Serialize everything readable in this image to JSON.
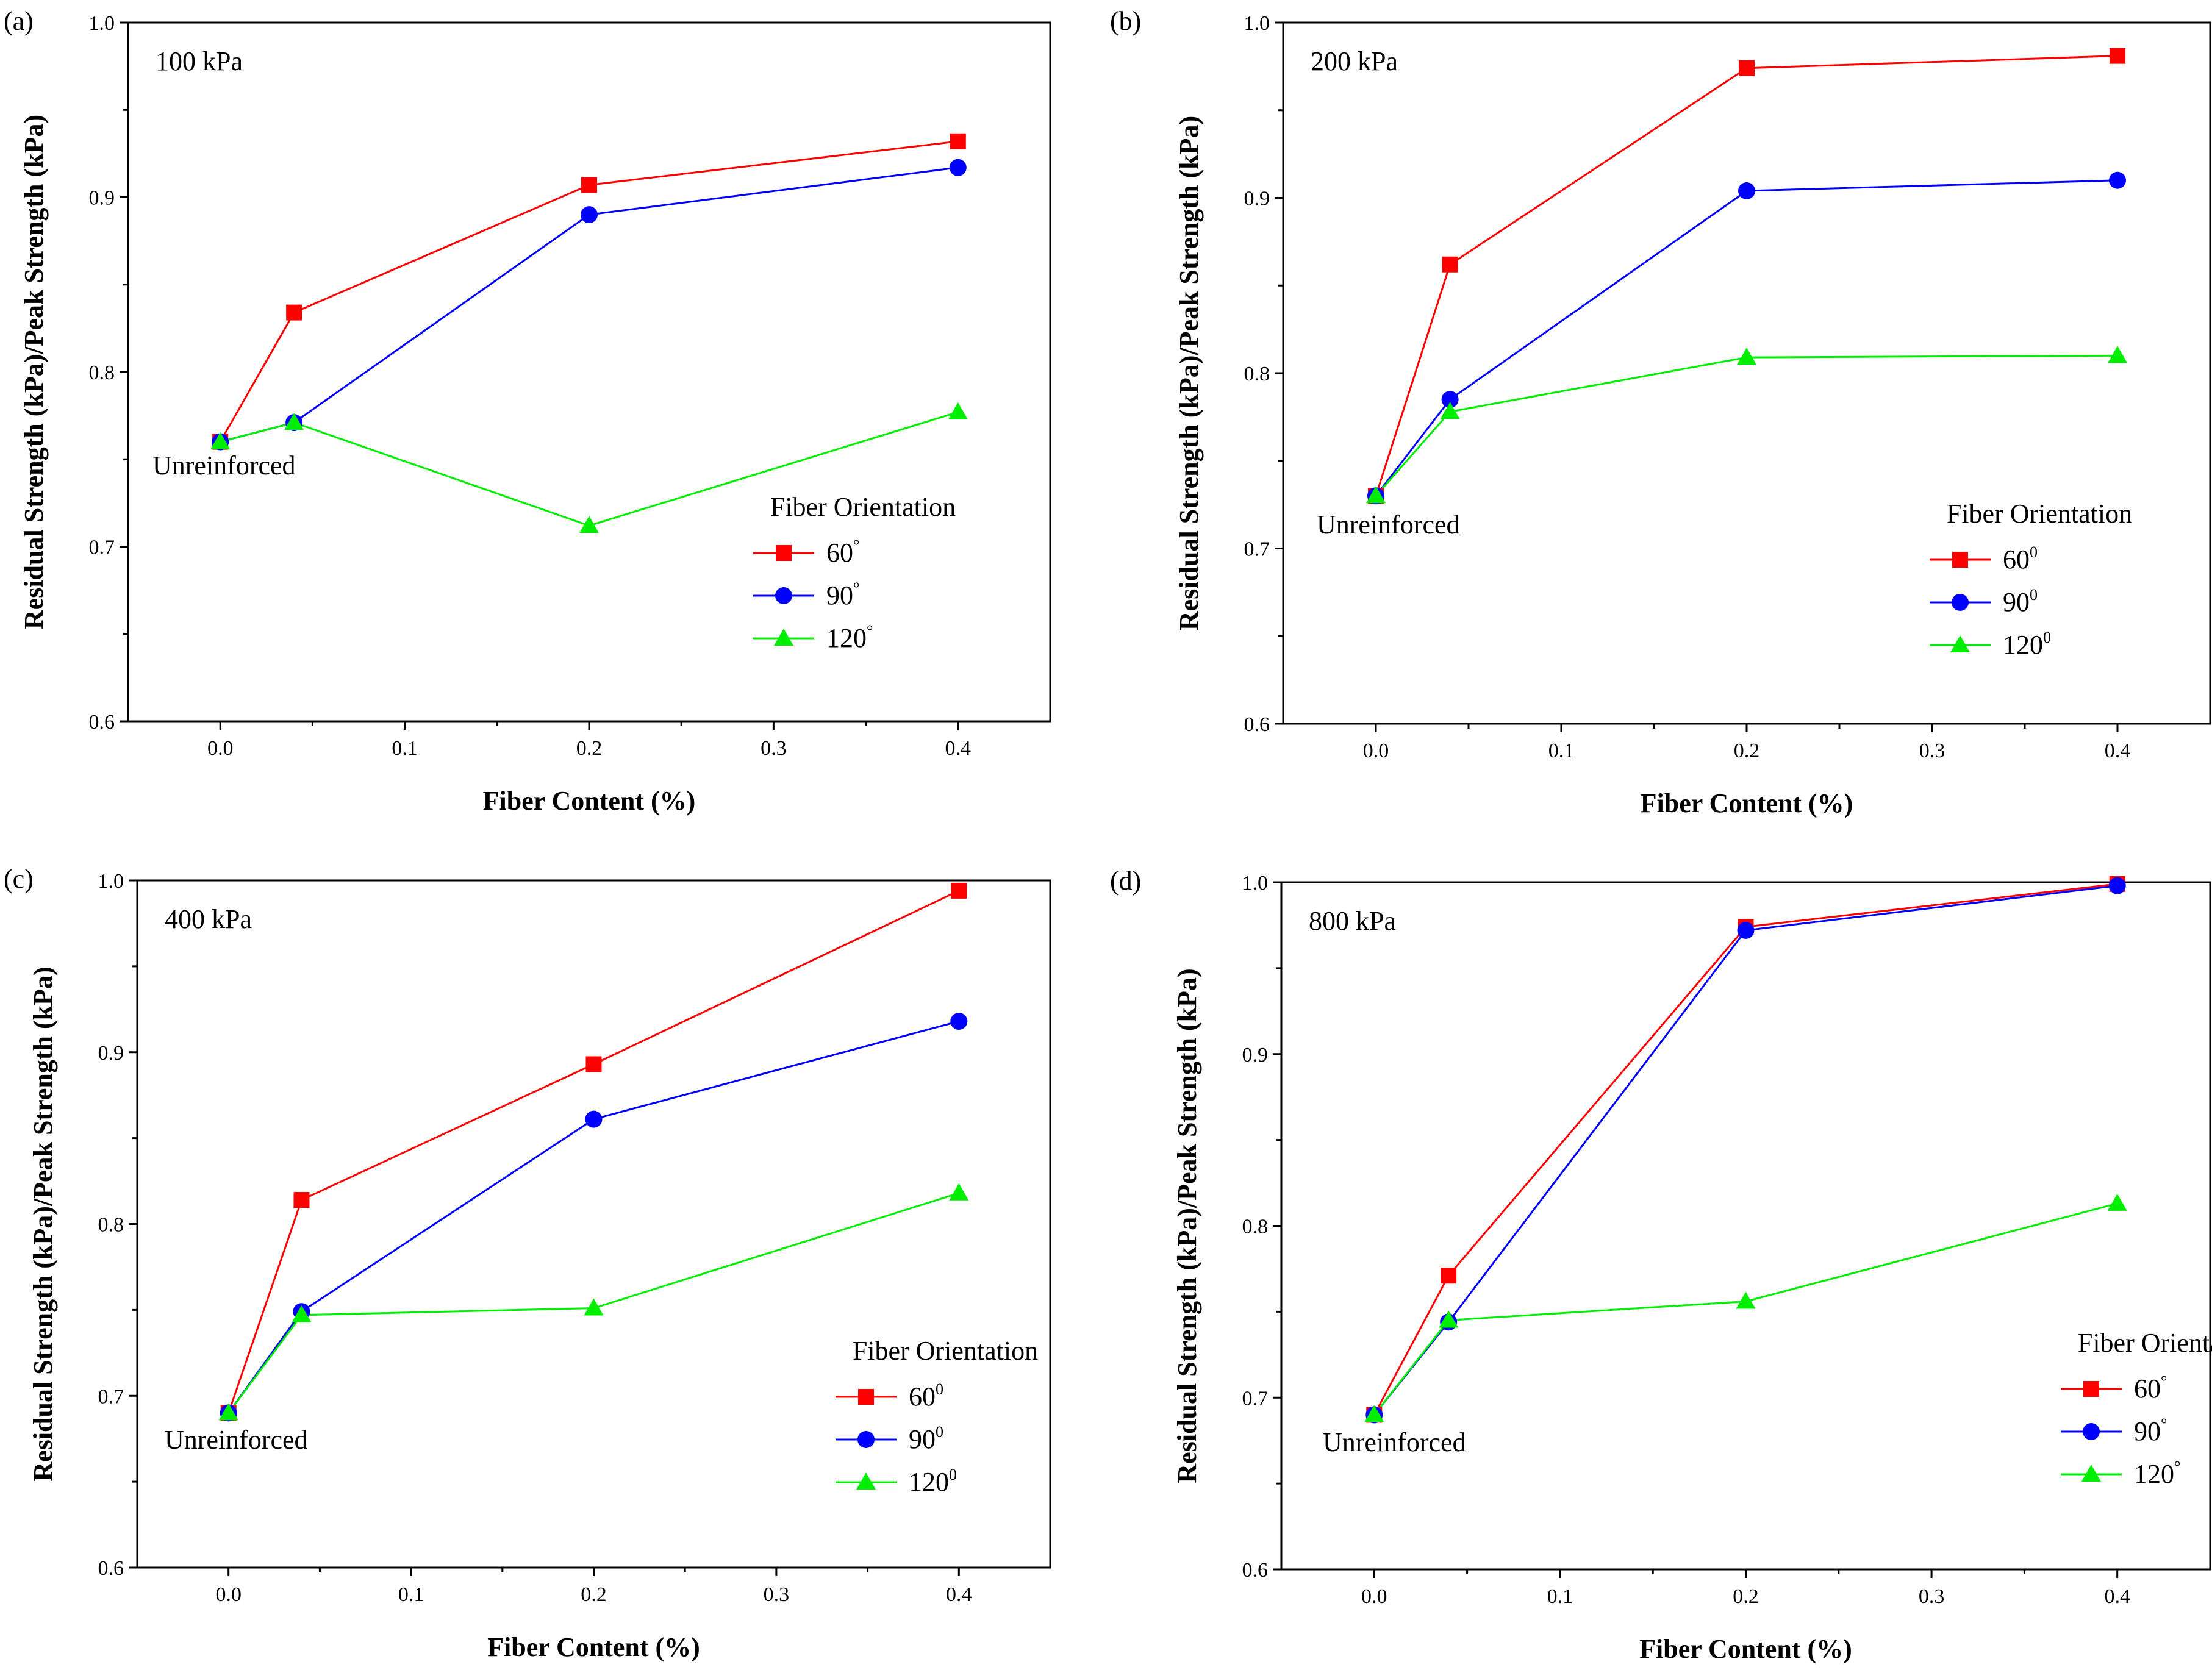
{
  "chart_data": [
    {
      "type": "line",
      "panel_label": "(a)",
      "pressure_label": "100 kPa",
      "xlabel": "Fiber Content (%)",
      "ylabel": "Residual Strength (kPa)/Peak Strength (kPa)",
      "xlim": [
        -0.05,
        0.45
      ],
      "ylim": [
        0.6,
        1.0
      ],
      "xticks": [
        0.0,
        0.1,
        0.2,
        0.3,
        0.4
      ],
      "xtick_labels": [
        "0.0",
        "0.1",
        "0.2",
        "0.3",
        "0.4"
      ],
      "yticks": [
        0.6,
        0.7,
        0.8,
        0.9,
        1.0
      ],
      "ytick_labels": [
        "0.6",
        "0.7",
        "0.8",
        "0.9",
        "1.0"
      ],
      "annotation": "Unreinforced",
      "legend_title": "Fiber Orientation",
      "legend_position": "lower-right",
      "x": [
        0.0,
        0.04,
        0.2,
        0.4
      ],
      "series": [
        {
          "name": "60",
          "sup": "°",
          "color": "#ff0000",
          "marker": "square",
          "values": [
            0.76,
            0.834,
            0.907,
            0.932
          ]
        },
        {
          "name": "90",
          "sup": "°",
          "color": "#0000ff",
          "marker": "circle",
          "values": [
            0.76,
            0.771,
            0.89,
            0.917
          ]
        },
        {
          "name": "120",
          "sup": "°",
          "color": "#00ee00",
          "marker": "triangle",
          "values": [
            0.76,
            0.771,
            0.712,
            0.777
          ]
        }
      ]
    },
    {
      "type": "line",
      "panel_label": "(b)",
      "pressure_label": "200 kPa",
      "xlabel": "Fiber Content (%)",
      "ylabel": "Residual Strength (kPa)/Peak Strength (kPa)",
      "xlim": [
        -0.05,
        0.45
      ],
      "ylim": [
        0.6,
        1.0
      ],
      "xticks": [
        0.0,
        0.1,
        0.2,
        0.3,
        0.4
      ],
      "xtick_labels": [
        "0.0",
        "0.1",
        "0.2",
        "0.3",
        "0.4"
      ],
      "yticks": [
        0.6,
        0.7,
        0.8,
        0.9,
        1.0
      ],
      "ytick_labels": [
        "0.6",
        "0.7",
        "0.8",
        "0.9",
        "1.0"
      ],
      "annotation": "Unreinforced",
      "legend_title": "Fiber Orientation",
      "legend_position": "lower-right",
      "x": [
        0.0,
        0.04,
        0.2,
        0.4
      ],
      "series": [
        {
          "name": "60",
          "sup": "0",
          "color": "#ff0000",
          "marker": "square",
          "values": [
            0.73,
            0.862,
            0.974,
            0.981
          ]
        },
        {
          "name": "90",
          "sup": "0",
          "color": "#0000ff",
          "marker": "circle",
          "values": [
            0.73,
            0.785,
            0.904,
            0.91
          ]
        },
        {
          "name": "120",
          "sup": "0",
          "color": "#00ee00",
          "marker": "triangle",
          "values": [
            0.73,
            0.778,
            0.809,
            0.81
          ]
        }
      ]
    },
    {
      "type": "line",
      "panel_label": "(c)",
      "pressure_label": "400 kPa",
      "xlabel": "Fiber Content (%)",
      "ylabel": "Residual Strength (kPa)/Peak Strength (kPa)",
      "xlim": [
        -0.05,
        0.45
      ],
      "ylim": [
        0.6,
        1.0
      ],
      "xticks": [
        0.0,
        0.1,
        0.2,
        0.3,
        0.4
      ],
      "xtick_labels": [
        "0.0",
        "0.1",
        "0.2",
        "0.3",
        "0.4"
      ],
      "yticks": [
        0.6,
        0.7,
        0.8,
        0.9,
        1.0
      ],
      "ytick_labels": [
        "0.6",
        "0.7",
        "0.8",
        "0.9",
        "1.0"
      ],
      "annotation": "Unreinforced",
      "legend_title": "Fiber Orientation",
      "legend_position": "lower-right",
      "x": [
        0.0,
        0.04,
        0.2,
        0.4
      ],
      "series": [
        {
          "name": "60",
          "sup": "0",
          "color": "#ff0000",
          "marker": "square",
          "values": [
            0.69,
            0.814,
            0.893,
            0.994
          ]
        },
        {
          "name": "90",
          "sup": "0",
          "color": "#0000ff",
          "marker": "circle",
          "values": [
            0.69,
            0.749,
            0.861,
            0.918
          ]
        },
        {
          "name": "120",
          "sup": "0",
          "color": "#00ee00",
          "marker": "triangle",
          "values": [
            0.69,
            0.747,
            0.751,
            0.818
          ]
        }
      ]
    },
    {
      "type": "line",
      "panel_label": "(d)",
      "pressure_label": "800 kPa",
      "xlabel": "Fiber Content (%)",
      "ylabel": "Residual Strength (kPa)/Peak Strength (kPa)",
      "xlim": [
        -0.05,
        0.45
      ],
      "ylim": [
        0.6,
        1.0
      ],
      "xticks": [
        0.0,
        0.1,
        0.2,
        0.3,
        0.4
      ],
      "xtick_labels": [
        "0.0",
        "0.1",
        "0.2",
        "0.3",
        "0.4"
      ],
      "yticks": [
        0.6,
        0.7,
        0.8,
        0.9,
        1.0
      ],
      "ytick_labels": [
        "0.6",
        "0.7",
        "0.8",
        "0.9",
        "1.0"
      ],
      "annotation": "Unreinforced",
      "legend_title": "Fiber Orientation",
      "legend_position": "lower-right",
      "x": [
        0.0,
        0.04,
        0.2,
        0.4
      ],
      "series": [
        {
          "name": "60",
          "sup": "°",
          "color": "#ff0000",
          "marker": "square",
          "values": [
            0.69,
            0.771,
            0.974,
            0.999
          ]
        },
        {
          "name": "90",
          "sup": "°",
          "color": "#0000ff",
          "marker": "circle",
          "values": [
            0.69,
            0.744,
            0.972,
            0.998
          ]
        },
        {
          "name": "120",
          "sup": "°",
          "color": "#00ee00",
          "marker": "triangle",
          "values": [
            0.69,
            0.745,
            0.756,
            0.813
          ]
        }
      ]
    }
  ]
}
